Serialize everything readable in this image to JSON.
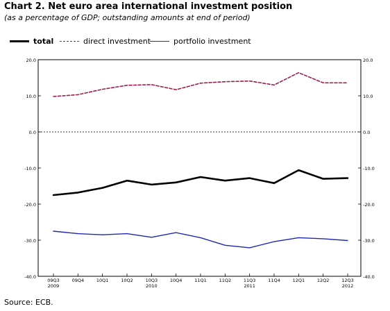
{
  "header": {
    "title": "Chart 2. Net euro area international investment position",
    "subtitle": "(as a percentage of GDP; outstanding amounts at end of period)"
  },
  "source": "Source: ECB.",
  "colors": {
    "total": "#000000",
    "direct": "#a01e50",
    "portfolio": "#1e28b4",
    "zero_line": "#000000"
  },
  "chart_data": {
    "type": "line",
    "title": "Chart 2. Net euro area international investment position",
    "subtitle": "(as a percentage of GDP; outstanding amounts at end of period)",
    "categories": [
      "09Q3",
      "09Q4",
      "10Q1",
      "10Q2",
      "10Q3",
      "10Q4",
      "11Q1",
      "11Q2",
      "11Q3",
      "11Q4",
      "12Q1",
      "12Q2",
      "12Q3"
    ],
    "year_labels": [
      {
        "label": "2009",
        "category": "09Q3"
      },
      {
        "label": "2010",
        "category": "10Q3"
      },
      {
        "label": "2011",
        "category": "11Q3"
      },
      {
        "label": "2012",
        "category": "12Q3"
      }
    ],
    "yticks": [
      "20.0",
      "10.0",
      "0.0",
      "-10.0",
      "-20.0",
      "-30.0",
      "-40.0"
    ],
    "ylim": [
      -40,
      20
    ],
    "grid": false,
    "legend": "top-left",
    "series": [
      {
        "key": "total",
        "name": "total",
        "style": "solid-bold",
        "values": [
          -17.5,
          -16.8,
          -15.5,
          -13.5,
          -14.6,
          -14.0,
          -12.5,
          -13.5,
          -12.8,
          -14.2,
          -10.6,
          -13.0,
          -12.8
        ]
      },
      {
        "key": "direct",
        "name": "direct investment",
        "style": "dashed",
        "values": [
          9.8,
          10.3,
          11.8,
          12.9,
          13.1,
          11.7,
          13.5,
          13.9,
          14.1,
          13.0,
          16.4,
          13.6,
          13.6
        ]
      },
      {
        "key": "portfolio",
        "name": "portfolio investment",
        "style": "solid",
        "values": [
          -27.5,
          -28.2,
          -28.5,
          -28.2,
          -29.2,
          -27.9,
          -29.3,
          -31.4,
          -32.1,
          -30.4,
          -29.3,
          -29.6,
          -30.1
        ]
      }
    ]
  }
}
